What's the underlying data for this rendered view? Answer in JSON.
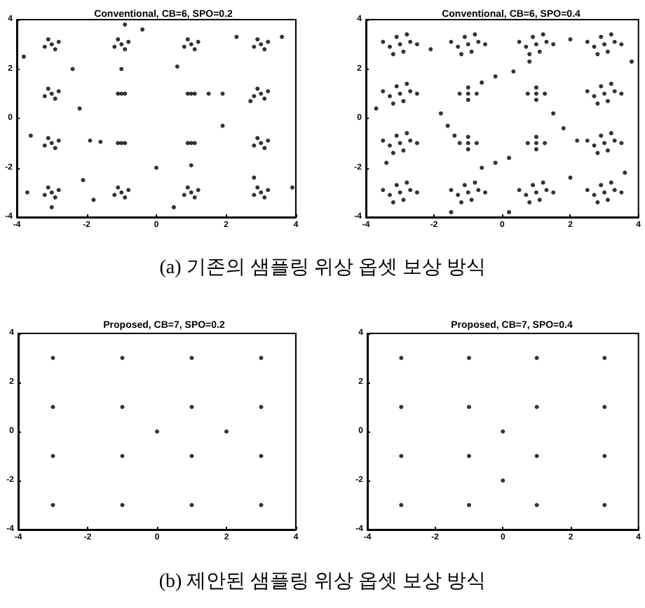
{
  "chart_data": [
    {
      "type": "scatter",
      "title": "Conventional, CB=6, SPO=0.2",
      "xlim": [
        -4,
        4
      ],
      "ylim": [
        -4,
        4
      ],
      "xticks": [
        -4,
        -2,
        0,
        2,
        4
      ],
      "yticks": [
        -4,
        -2,
        0,
        2,
        4
      ],
      "grid": false,
      "marker": "circle",
      "annotations": [
        "(a) 기존의 샘플링 위상 옵셋 보상 방식"
      ],
      "series": [
        {
          "color": "#000000",
          "x": [
            -3,
            -2.8,
            -3.2,
            -2.9,
            -3.1,
            -1,
            -0.8,
            -1.2,
            -0.9,
            -1.1,
            1,
            1.2,
            0.8,
            1.1,
            0.9,
            3,
            3.2,
            2.8,
            3.1,
            2.9,
            -3,
            -2.8,
            -3.2,
            -2.9,
            -3.1,
            -1,
            -0.9,
            -1.1,
            1,
            1.1,
            0.9,
            3,
            3.2,
            2.8,
            3.1,
            2.9,
            -3,
            -2.8,
            -3.2,
            -2.9,
            -3.1,
            -1,
            -0.9,
            -1.1,
            1,
            1.1,
            0.9,
            3,
            3.2,
            2.8,
            3.1,
            2.9,
            -3,
            -2.8,
            -3.2,
            -2.9,
            -3.1,
            -1,
            -0.8,
            -1.2,
            -0.9,
            -1.1,
            1,
            1.2,
            0.8,
            1.1,
            0.9,
            3,
            3.2,
            2.8,
            3.1,
            2.9,
            -3.8,
            -1,
            -0.9,
            -0.4,
            0.6,
            2.3,
            3.6,
            -2.4,
            -2.2,
            1.5,
            1.9,
            2.7,
            -1.9,
            -1.6,
            1,
            1.9,
            -3.6,
            0,
            -2.1,
            2.8,
            -3.7,
            3.9,
            -1.8,
            0.5,
            -3
          ],
          "values": [
            3,
            3.1,
            2.9,
            2.8,
            3.2,
            3,
            3.1,
            2.9,
            2.8,
            3.2,
            3,
            3.1,
            2.9,
            2.8,
            3.2,
            3,
            3.1,
            2.9,
            2.8,
            3.2,
            1,
            1.1,
            0.9,
            0.8,
            1.2,
            1,
            1,
            1,
            1,
            1,
            1,
            1,
            1.1,
            0.9,
            0.8,
            1.2,
            -1,
            -0.9,
            -1.1,
            -1.2,
            -0.8,
            -1,
            -1,
            -1,
            -1,
            -1,
            -1,
            -1,
            -0.9,
            -1.1,
            -1.2,
            -0.8,
            -3,
            -2.9,
            -3.1,
            -3.2,
            -2.8,
            -3,
            -2.9,
            -3.1,
            -3.2,
            -2.8,
            -3,
            -2.9,
            -3.1,
            -3.2,
            -2.8,
            -3,
            -2.9,
            -3.1,
            -3.2,
            -2.8,
            2.5,
            2,
            3.8,
            3.6,
            2.1,
            3.3,
            3.3,
            2,
            0.4,
            1,
            1,
            0.7,
            -0.9,
            -0.95,
            -1.9,
            -0.3,
            -0.7,
            -2,
            -2.5,
            -2.4,
            -3,
            -2.8,
            -3.3,
            -3.6,
            -3.6
          ]
        }
      ]
    },
    {
      "type": "scatter",
      "title": "Conventional, CB=6, SPO=0.4",
      "xlim": [
        -4,
        4
      ],
      "ylim": [
        -4,
        4
      ],
      "xticks": [
        -4,
        -2,
        0,
        2,
        4
      ],
      "yticks": [
        -4,
        -2,
        0,
        2,
        4
      ],
      "grid": false,
      "marker": "circle",
      "series": [
        {
          "color": "#000000",
          "x": [
            -3,
            -2.7,
            -3.3,
            -2.9,
            -3.1,
            -2.5,
            -3.5,
            -2.8,
            -3.2,
            -1,
            -0.7,
            -1.3,
            -0.9,
            -1.1,
            -0.5,
            -1.5,
            -0.8,
            -1.2,
            1,
            1.3,
            0.7,
            1.1,
            0.9,
            1.5,
            0.5,
            1.2,
            0.8,
            3,
            3.3,
            2.7,
            3.1,
            2.9,
            3.5,
            2.5,
            3.2,
            2.8,
            -3,
            -2.7,
            -3.3,
            -2.9,
            -3.1,
            -2.5,
            -3.5,
            -2.8,
            -3.2,
            -1,
            -0.75,
            -1.25,
            -1,
            -1,
            1,
            1.25,
            0.75,
            1,
            1,
            3,
            3.3,
            2.7,
            3.1,
            2.9,
            3.5,
            2.5,
            3.2,
            2.8,
            -3,
            -2.7,
            -3.3,
            -2.9,
            -3.1,
            -2.5,
            -3.5,
            -2.8,
            -3.2,
            -1,
            -0.75,
            -1.25,
            -1,
            -1,
            1,
            1.25,
            0.75,
            1,
            1,
            3,
            3.3,
            2.7,
            3.1,
            2.9,
            3.5,
            2.5,
            3.2,
            2.8,
            -3,
            -2.7,
            -3.3,
            -2.9,
            -3.1,
            -2.5,
            -3.5,
            -2.8,
            -3.2,
            -1,
            -0.7,
            -1.3,
            -0.9,
            -1.1,
            -0.5,
            -1.5,
            -0.8,
            -1.2,
            1,
            1.3,
            0.7,
            1.1,
            0.9,
            1.5,
            0.5,
            1.2,
            0.8,
            3,
            3.3,
            2.7,
            3.1,
            2.9,
            3.5,
            2.5,
            3.2,
            2.8,
            -0.6,
            -0.2,
            0.33,
            0.8,
            -1.8,
            -1.6,
            -1.4,
            -0.6,
            -0.2,
            0.2,
            1.5,
            1.8,
            2.2,
            -2.1,
            2,
            3.8,
            -3.7,
            -3.4,
            2,
            -1.5,
            0.2,
            3.6
          ],
          "values": [
            3,
            3.1,
            2.9,
            2.7,
            3.3,
            3,
            3.1,
            3.4,
            2.6,
            3,
            3.1,
            2.9,
            2.7,
            3.3,
            3,
            3.1,
            3.4,
            2.6,
            3,
            3.1,
            2.9,
            2.7,
            3.3,
            3,
            3.1,
            3.4,
            2.6,
            3,
            3.1,
            2.9,
            2.7,
            3.3,
            3,
            3.1,
            3.4,
            2.6,
            1,
            1.1,
            0.9,
            0.7,
            1.3,
            1,
            1.1,
            1.4,
            0.6,
            1,
            1,
            1,
            1.25,
            0.75,
            1,
            1,
            1,
            1.25,
            0.75,
            1,
            1.1,
            0.9,
            0.7,
            1.3,
            1,
            1.1,
            1.4,
            0.6,
            -1,
            -0.9,
            -1.1,
            -1.3,
            -0.7,
            -1,
            -0.9,
            -0.6,
            -1.4,
            -1,
            -1,
            -1,
            -0.75,
            -1.25,
            -1,
            -1,
            -1,
            -0.75,
            -1.25,
            -1,
            -0.9,
            -1.1,
            -1.3,
            -0.7,
            -1,
            -0.9,
            -0.6,
            -1.4,
            -3,
            -2.9,
            -3.1,
            -3.3,
            -2.7,
            -3,
            -2.9,
            -2.6,
            -3.4,
            -3,
            -2.9,
            -3.1,
            -3.3,
            -2.7,
            -3,
            -2.9,
            -2.6,
            -3.4,
            -3,
            -2.9,
            -3.1,
            -3.3,
            -2.7,
            -3,
            -2.9,
            -2.6,
            -3.4,
            -3,
            -2.9,
            -3.1,
            -3.3,
            -2.7,
            -3,
            -2.9,
            -2.6,
            -3.4,
            1.45,
            1.7,
            1.9,
            2.3,
            0.2,
            -0.3,
            -0.7,
            -2,
            -1.8,
            -1.6,
            0.2,
            -0.4,
            -0.9,
            2.8,
            3.2,
            2.3,
            0.4,
            -1.8,
            -2.4,
            -3.8,
            -3.8,
            -2.2
          ]
        }
      ]
    },
    {
      "type": "scatter",
      "title": "Proposed, CB=7, SPO=0.2",
      "xlim": [
        -4,
        4
      ],
      "ylim": [
        -4,
        4
      ],
      "xticks": [
        -4,
        -2,
        0,
        2,
        4
      ],
      "yticks": [
        -4,
        -2,
        0,
        2,
        4
      ],
      "grid": false,
      "marker": "circle",
      "annotations": [
        "(b) 제안된 샘플링 위상 옵셋 보상 방식"
      ],
      "series": [
        {
          "color": "#000000",
          "x": [
            -3,
            -1,
            1,
            3,
            -3,
            -1,
            1,
            3,
            -3,
            -1,
            1,
            3,
            -3,
            -1,
            1,
            3,
            0,
            2
          ],
          "values": [
            3,
            3,
            3,
            3,
            1,
            1,
            1,
            1,
            -1,
            -1,
            -1,
            -1,
            -3,
            -3,
            -3,
            -3,
            0,
            0
          ]
        }
      ]
    },
    {
      "type": "scatter",
      "title": "Proposed, CB=7, SPO=0.4",
      "xlim": [
        -4,
        4
      ],
      "ylim": [
        -4,
        4
      ],
      "xticks": [
        -4,
        -2,
        0,
        2,
        4
      ],
      "yticks": [
        -4,
        -2,
        0,
        2,
        4
      ],
      "grid": false,
      "marker": "circle",
      "series": [
        {
          "color": "#000000",
          "x": [
            -3,
            -1,
            1,
            3,
            -3,
            -1,
            1,
            3,
            -3,
            -1,
            1,
            3,
            -3,
            -1,
            1,
            3,
            0,
            0
          ],
          "values": [
            3,
            3,
            3,
            3,
            1,
            1,
            1,
            1,
            -1,
            -1,
            -1,
            -1,
            -3,
            -3,
            -3,
            -3,
            0,
            -2
          ]
        }
      ]
    }
  ]
}
